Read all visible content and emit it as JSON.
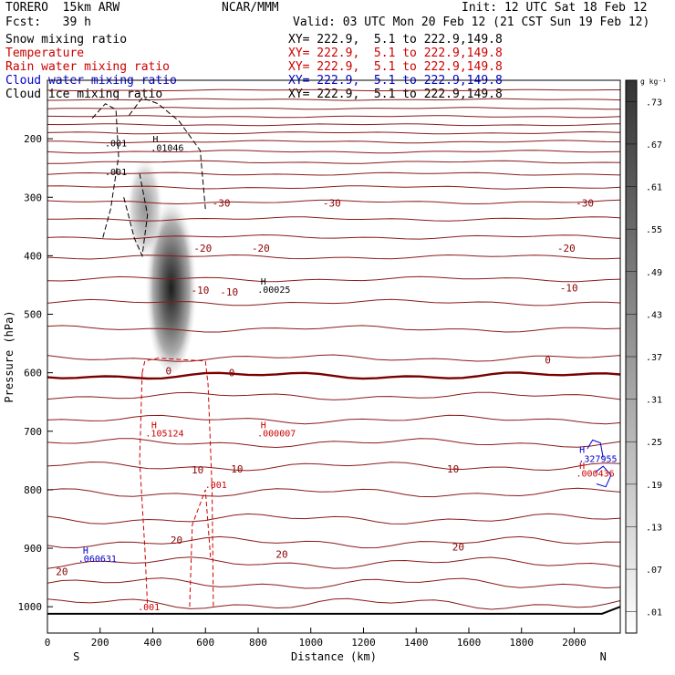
{
  "header": {
    "model": "TORERO  15km ARW",
    "org": "NCAR/MMM",
    "init": "Init: 12 UTC Sat 18 Feb 12",
    "fcst": "Fcst:   39 h",
    "valid": "Valid: 03 UTC Mon 20 Feb 12 (21 CST Sun 19 Feb 12)",
    "fields": [
      {
        "label": "Snow mixing ratio",
        "color": "#000000",
        "xy": "XY= 222.9,  5.1 to 222.9,149.8"
      },
      {
        "label": "Temperature",
        "color": "#cc0000",
        "xy": "XY= 222.9,  5.1 to 222.9,149.8"
      },
      {
        "label": "Rain water mixing ratio",
        "color": "#cc0000",
        "xy": "XY= 222.9,  5.1 to 222.9,149.8"
      },
      {
        "label": "Cloud water mixing ratio",
        "color": "#0000cc",
        "xy": "XY= 222.9,  5.1 to 222.9,149.8"
      },
      {
        "label": "Cloud ice mixing ratio",
        "color": "#000000",
        "xy": "XY= 222.9,  5.1 to 222.9,149.8"
      }
    ]
  },
  "chart_data": {
    "type": "heatmap",
    "xlabel": "Distance (km)",
    "ylabel": "Pressure (hPa)",
    "xlim": [
      0,
      2175
    ],
    "ylim": [
      1045,
      100
    ],
    "x_ticks": [
      0,
      200,
      400,
      600,
      800,
      1000,
      1200,
      1400,
      1600,
      1800,
      2000
    ],
    "y_ticks": [
      200,
      300,
      400,
      500,
      600,
      700,
      800,
      900,
      1000
    ],
    "x_end_labels": {
      "left": "S",
      "right": "N"
    },
    "colorbar": {
      "unit": "g kg⁻¹",
      "labels": [
        ".01",
        ".07",
        ".13",
        ".19",
        ".25",
        ".31",
        ".37",
        ".43",
        ".49",
        ".55",
        ".61",
        ".67",
        ".73"
      ]
    },
    "temperature_labels": [
      {
        "x": 1080,
        "p": 310,
        "text": "-30"
      },
      {
        "x": 2040,
        "p": 310,
        "text": "-30"
      },
      {
        "x": 660,
        "p": 310,
        "text": "-30"
      },
      {
        "x": 590,
        "p": 387,
        "text": "-20"
      },
      {
        "x": 810,
        "p": 387,
        "text": "-20"
      },
      {
        "x": 1970,
        "p": 387,
        "text": "-20"
      },
      {
        "x": 580,
        "p": 459,
        "text": "-10"
      },
      {
        "x": 690,
        "p": 462,
        "text": "-10"
      },
      {
        "x": 1980,
        "p": 455,
        "text": "-10"
      },
      {
        "x": 460,
        "p": 597,
        "text": "0"
      },
      {
        "x": 700,
        "p": 600,
        "text": "0"
      },
      {
        "x": 1900,
        "p": 578,
        "text": "0"
      },
      {
        "x": 570,
        "p": 766,
        "text": "10"
      },
      {
        "x": 720,
        "p": 764,
        "text": "10"
      },
      {
        "x": 1540,
        "p": 764,
        "text": "10"
      },
      {
        "x": 490,
        "p": 886,
        "text": "20"
      },
      {
        "x": 890,
        "p": 910,
        "text": "20"
      },
      {
        "x": 1560,
        "p": 898,
        "text": "20"
      },
      {
        "x": 55,
        "p": 940,
        "text": "20"
      }
    ],
    "annotations": [
      {
        "x": 260,
        "p": 207,
        "text": ".001",
        "color": "#000000"
      },
      {
        "x": 260,
        "p": 256,
        "text": ".001",
        "color": "#000000"
      },
      {
        "x": 410,
        "p": 200,
        "text": "H",
        "color": "#000000"
      },
      {
        "x": 455,
        "p": 215,
        "text": ".01046",
        "color": "#000000"
      },
      {
        "x": 820,
        "p": 443,
        "text": "H",
        "color": "#000000"
      },
      {
        "x": 860,
        "p": 457,
        "text": ".00025",
        "color": "#000000"
      },
      {
        "x": 405,
        "p": 689,
        "text": "H",
        "color": "#cc0000"
      },
      {
        "x": 445,
        "p": 703,
        "text": ".105124",
        "color": "#cc0000"
      },
      {
        "x": 820,
        "p": 689,
        "text": "H",
        "color": "#cc0000"
      },
      {
        "x": 870,
        "p": 703,
        "text": ".000007",
        "color": "#cc0000"
      },
      {
        "x": 640,
        "p": 791,
        "text": ".001",
        "color": "#cc0000"
      },
      {
        "x": 385,
        "p": 1000,
        "text": ".001",
        "color": "#cc0000"
      },
      {
        "x": 2030,
        "p": 731,
        "text": "H",
        "color": "#0000cc"
      },
      {
        "x": 2090,
        "p": 746,
        "text": ".327955",
        "color": "#0000cc"
      },
      {
        "x": 2030,
        "p": 758,
        "text": "H",
        "color": "#cc0000"
      },
      {
        "x": 2080,
        "p": 771,
        "text": ".000436",
        "color": "#cc0000"
      },
      {
        "x": 145,
        "p": 903,
        "text": "H",
        "color": "#0000cc"
      },
      {
        "x": 190,
        "p": 917,
        "text": ".060631",
        "color": "#0000cc"
      }
    ],
    "isotherm_pressures": [
      117,
      133,
      148,
      162,
      176,
      190,
      205,
      222,
      240,
      260,
      283,
      308,
      337,
      368,
      402,
      440,
      480,
      525,
      575,
      605,
      640,
      680,
      720,
      760,
      805,
      850,
      890,
      925,
      960,
      995
    ]
  }
}
